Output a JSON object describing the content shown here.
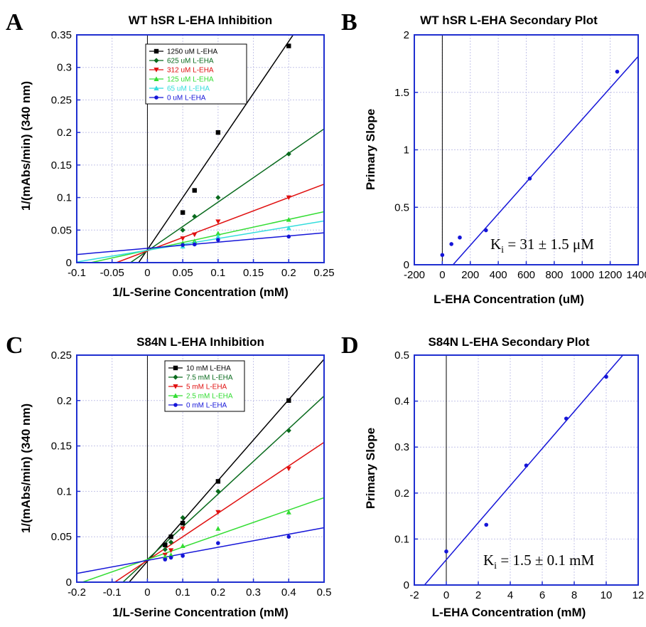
{
  "colors": {
    "frame": "#1f2fd0",
    "grid": "#c4c4e8",
    "black": "#000000",
    "dark_green": "#0a6b1e",
    "red": "#e01010",
    "green": "#33dd33",
    "cyan": "#33dddd",
    "blue": "#1515d8"
  },
  "chart_data": [
    {
      "panel": "A",
      "type": "line",
      "title": "WT hSR L-EHA Inhibition",
      "xlabel": "1/L-Serine Concentration (mM)",
      "ylabel": "1/(mAbs/min) (340 nm)",
      "xlim": [
        -0.1,
        0.25
      ],
      "ylim": [
        0,
        0.35
      ],
      "xticks": [
        -0.1,
        -0.05,
        0,
        0.05,
        0.1,
        0.15,
        0.2,
        0.25
      ],
      "yticks": [
        0,
        0.05,
        0.1,
        0.15,
        0.2,
        0.25,
        0.3,
        0.35
      ],
      "xtick_labels": [
        "-0.1",
        "-0.05",
        "0",
        "0.05",
        "0.1",
        "0.15",
        "0.2",
        "0.25"
      ],
      "ytick_labels": [
        "0",
        "0.05",
        "0.1",
        "0.15",
        "0.2",
        "0.25",
        "0.3",
        "0.35"
      ],
      "grid": true,
      "legend": "top-center",
      "series": [
        {
          "name": "1250 uM L-EHA",
          "color": "black",
          "marker": "square",
          "x": [
            0.05,
            0.0667,
            0.1,
            0.2
          ],
          "y": [
            0.077,
            0.111,
            0.2,
            0.333
          ],
          "fit": [
            1.6,
            0.02
          ]
        },
        {
          "name": "625 uM L-EHA",
          "color": "dark_green",
          "marker": "diamond",
          "x": [
            0.05,
            0.0667,
            0.1,
            0.2
          ],
          "y": [
            0.05,
            0.071,
            0.1,
            0.167
          ],
          "fit": [
            0.75,
            0.018
          ]
        },
        {
          "name": "312 uM L-EHA",
          "color": "red",
          "marker": "triangle-down",
          "x": [
            0.05,
            0.0667,
            0.1,
            0.2
          ],
          "y": [
            0.037,
            0.043,
            0.063,
            0.1
          ],
          "fit": [
            0.41,
            0.018
          ]
        },
        {
          "name": "125 uM L-EHA",
          "color": "green",
          "marker": "triangle-up",
          "x": [
            0.05,
            0.0667,
            0.1,
            0.2
          ],
          "y": [
            0.03,
            0.033,
            0.045,
            0.066
          ],
          "fit": [
            0.237,
            0.019
          ]
        },
        {
          "name": "65 uM L-EHA",
          "color": "cyan",
          "marker": "triangle-up",
          "x": [
            0.05,
            0.0667,
            0.1,
            0.2
          ],
          "y": [
            0.025,
            0.03,
            0.04,
            0.053
          ],
          "fit": [
            0.18,
            0.019
          ]
        },
        {
          "name": "0 uM L-EHA",
          "color": "blue",
          "marker": "circle",
          "x": [
            0.05,
            0.0667,
            0.1,
            0.2
          ],
          "y": [
            0.027,
            0.028,
            0.035,
            0.04
          ],
          "fit": [
            0.095,
            0.022
          ]
        }
      ]
    },
    {
      "panel": "B",
      "type": "scatter",
      "title": "WT hSR L-EHA Secondary Plot",
      "xlabel": "L-EHA Concentration (uM)",
      "ylabel": "Primary Slope",
      "xlim": [
        -200,
        1400
      ],
      "ylim": [
        0,
        2
      ],
      "xticks": [
        -200,
        0,
        200,
        400,
        600,
        800,
        1000,
        1200,
        1400
      ],
      "yticks": [
        0,
        0.5,
        1,
        1.5,
        2
      ],
      "xtick_labels": [
        "-200",
        "0",
        "200",
        "400",
        "600",
        "800",
        "1000",
        "1200",
        "1400"
      ],
      "ytick_labels": [
        "0",
        "0.5",
        "1",
        "1.5",
        "2"
      ],
      "grid": true,
      "annotation": "K",
      "annotation_sub": "i",
      "annotation_rest": " = 31 ± 1.5 μM",
      "series": [
        {
          "color": "blue",
          "marker": "circle",
          "x": [
            0,
            65,
            125,
            312,
            625,
            1250
          ],
          "y": [
            0.085,
            0.18,
            0.237,
            0.3,
            0.75,
            1.68
          ],
          "fit": [
            0.00137,
            -0.105
          ]
        }
      ]
    },
    {
      "panel": "C",
      "type": "line",
      "title": "S84N L-EHA Inhibition",
      "xlabel": "1/L-Serine Concentration (mM)",
      "ylabel": "1/(mAbs/min) (340 nm)",
      "xlim": [
        -0.2,
        0.5
      ],
      "ylim": [
        0,
        0.25
      ],
      "xticks": [
        -0.2,
        -0.1,
        0,
        0.1,
        0.2,
        0.3,
        0.4,
        0.5
      ],
      "yticks": [
        0,
        0.05,
        0.1,
        0.15,
        0.2,
        0.25
      ],
      "xtick_labels": [
        "-0.2",
        "-0.1",
        "0",
        "0.1",
        "0.2",
        "0.3",
        "0.4",
        "0.5"
      ],
      "ytick_labels": [
        "0",
        "0.05",
        "0.1",
        "0.15",
        "0.2",
        "0.25"
      ],
      "grid": true,
      "legend": "top-center",
      "series": [
        {
          "name": "10 mM L-EHA",
          "color": "black",
          "marker": "square",
          "x": [
            0.05,
            0.0667,
            0.1,
            0.2,
            0.4
          ],
          "y": [
            0.041,
            0.05,
            0.065,
            0.111,
            0.2
          ],
          "fit": [
            0.445,
            0.023
          ]
        },
        {
          "name": "7.5 mM L-EHA",
          "color": "dark_green",
          "marker": "diamond",
          "x": [
            0.05,
            0.0667,
            0.1,
            0.2,
            0.4
          ],
          "y": [
            0.036,
            0.044,
            0.071,
            0.1,
            0.167
          ],
          "fit": [
            0.36,
            0.025
          ]
        },
        {
          "name": "5 mM L-EHA",
          "color": "red",
          "marker": "triangle-down",
          "x": [
            0.05,
            0.0667,
            0.1,
            0.2,
            0.4
          ],
          "y": [
            0.03,
            0.035,
            0.059,
            0.077,
            0.125
          ],
          "fit": [
            0.26,
            0.024
          ]
        },
        {
          "name": "2.5 mM L-EHA",
          "color": "green",
          "marker": "triangle-up",
          "x": [
            0.05,
            0.0667,
            0.1,
            0.2,
            0.4
          ],
          "y": [
            0.028,
            0.03,
            0.04,
            0.059,
            0.077
          ],
          "fit": [
            0.136,
            0.025
          ]
        },
        {
          "name": "0 mM L-EHA",
          "color": "blue",
          "marker": "circle",
          "x": [
            0.05,
            0.0667,
            0.1,
            0.2,
            0.4
          ],
          "y": [
            0.025,
            0.027,
            0.029,
            0.043,
            0.05
          ],
          "fit": [
            0.072,
            0.024
          ]
        }
      ]
    },
    {
      "panel": "D",
      "type": "scatter",
      "title": "S84N L-EHA Secondary Plot",
      "xlabel": "L-EHA Concentration (mM)",
      "ylabel": "Primary Slope",
      "xlim": [
        -2,
        12
      ],
      "ylim": [
        0,
        0.5
      ],
      "xticks": [
        -2,
        0,
        2,
        4,
        6,
        8,
        10,
        12
      ],
      "yticks": [
        0,
        0.1,
        0.2,
        0.3,
        0.4,
        0.5
      ],
      "xtick_labels": [
        "-2",
        "0",
        "2",
        "4",
        "6",
        "8",
        "10",
        "12"
      ],
      "ytick_labels": [
        "0",
        "0.1",
        "0.2",
        "0.3",
        "0.4",
        "0.5"
      ],
      "grid": true,
      "annotation": "K",
      "annotation_sub": "i",
      "annotation_rest": " = 1.5 ± 0.1 mM",
      "series": [
        {
          "color": "blue",
          "marker": "circle",
          "x": [
            0,
            2.5,
            5,
            7.5,
            10
          ],
          "y": [
            0.073,
            0.131,
            0.26,
            0.362,
            0.453
          ],
          "fit": [
            0.0403,
            0.055
          ]
        }
      ]
    }
  ]
}
